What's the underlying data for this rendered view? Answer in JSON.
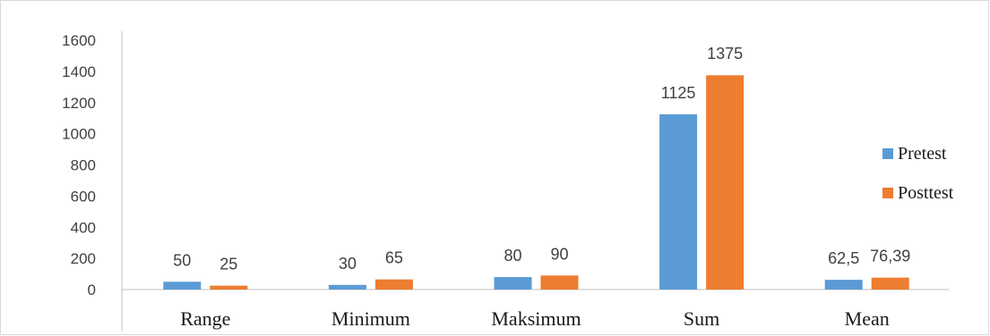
{
  "chart_data": {
    "type": "bar",
    "title": "",
    "xlabel": "",
    "ylabel": "",
    "categories": [
      "Range",
      "Minimum",
      "Maksimum",
      "Sum",
      "Mean"
    ],
    "series": [
      {
        "name": "Pretest",
        "values": [
          50,
          30,
          80,
          1125,
          62.5
        ],
        "labels": [
          "50",
          "30",
          "80",
          "1125",
          "62,5"
        ],
        "color": "#5b9bd5"
      },
      {
        "name": "Posttest",
        "values": [
          25,
          65,
          90,
          1375,
          76.39
        ],
        "labels": [
          "25",
          "65",
          "90",
          "1375",
          "76,39"
        ],
        "color": "#ed7d31"
      }
    ],
    "ylim": [
      0,
      1600
    ],
    "yticks": [
      0,
      200,
      400,
      600,
      800,
      1000,
      1200,
      1400,
      1600
    ],
    "grid": false,
    "legend_position": "right"
  }
}
